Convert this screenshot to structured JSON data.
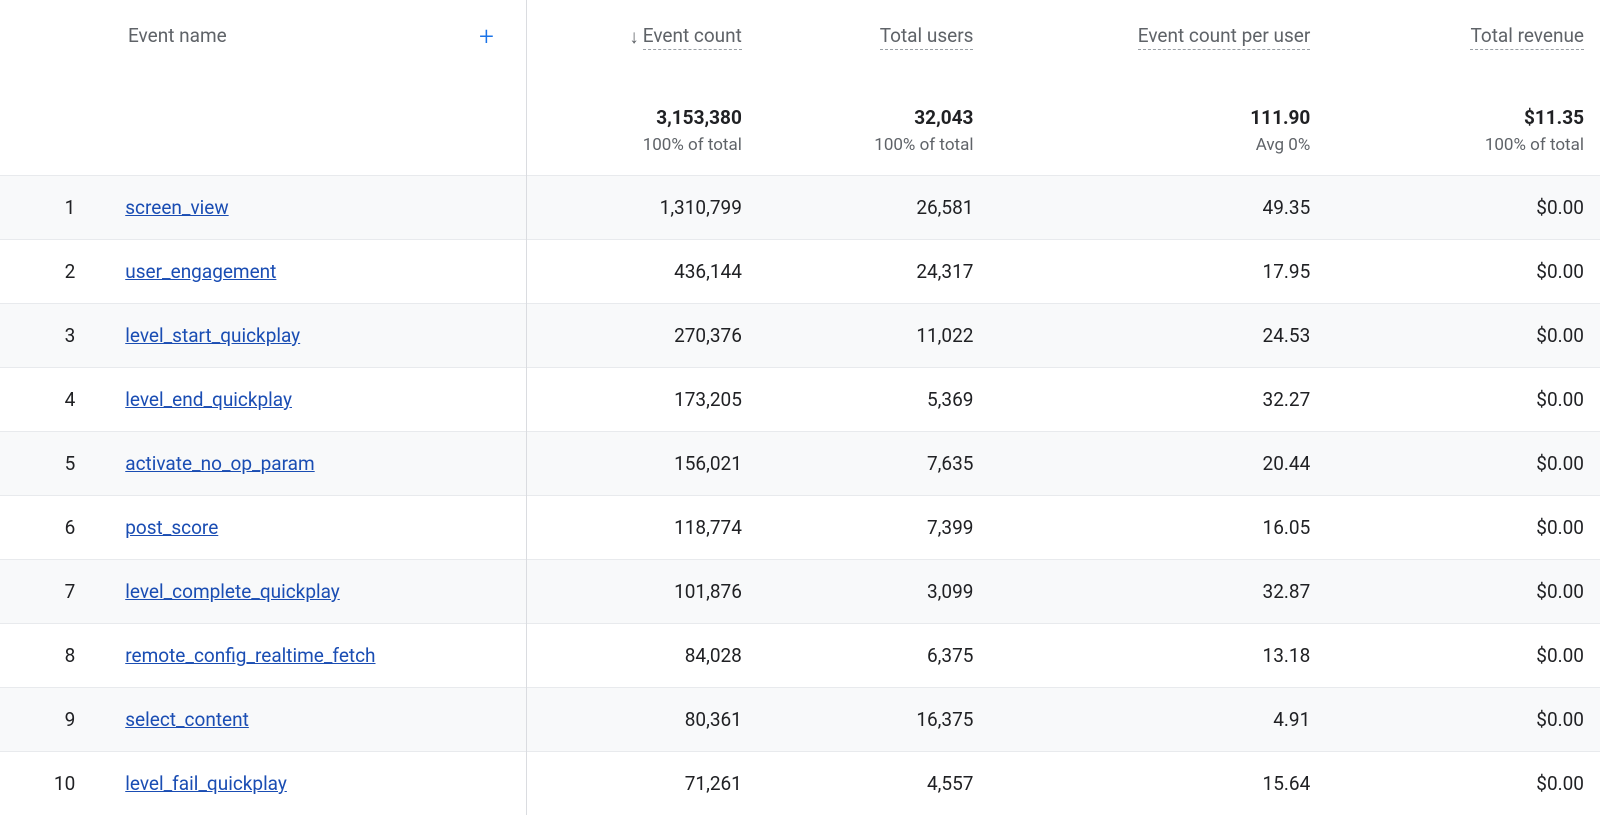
{
  "colors": {
    "text": "#202124",
    "muted": "#5f6368",
    "link": "#1a4db3",
    "accent": "#1a73e8",
    "border": "#dadce0",
    "rowBorder": "#e8eaed",
    "stripe": "#f8f9fa",
    "dashed": "#9aa0a6",
    "background": "#ffffff"
  },
  "header": {
    "name_label": "Event name",
    "plus_glyph": "+",
    "sort_arrow": "↓",
    "columns": [
      {
        "label": "Event count",
        "sorted": true
      },
      {
        "label": "Total users",
        "sorted": false
      },
      {
        "label": "Event count per user",
        "sorted": false
      },
      {
        "label": "Total revenue",
        "sorted": false
      }
    ]
  },
  "totals": {
    "event_count": {
      "value": "3,153,380",
      "sub": "100% of total"
    },
    "total_users": {
      "value": "32,043",
      "sub": "100% of total"
    },
    "per_user": {
      "value": "111.90",
      "sub": "Avg 0%"
    },
    "revenue": {
      "value": "$11.35",
      "sub": "100% of total"
    }
  },
  "rows": [
    {
      "idx": "1",
      "name": "screen_view",
      "event_count": "1,310,799",
      "total_users": "26,581",
      "per_user": "49.35",
      "revenue": "$0.00"
    },
    {
      "idx": "2",
      "name": "user_engagement",
      "event_count": "436,144",
      "total_users": "24,317",
      "per_user": "17.95",
      "revenue": "$0.00"
    },
    {
      "idx": "3",
      "name": "level_start_quickplay",
      "event_count": "270,376",
      "total_users": "11,022",
      "per_user": "24.53",
      "revenue": "$0.00"
    },
    {
      "idx": "4",
      "name": "level_end_quickplay",
      "event_count": "173,205",
      "total_users": "5,369",
      "per_user": "32.27",
      "revenue": "$0.00"
    },
    {
      "idx": "5",
      "name": "activate_no_op_param",
      "event_count": "156,021",
      "total_users": "7,635",
      "per_user": "20.44",
      "revenue": "$0.00"
    },
    {
      "idx": "6",
      "name": "post_score",
      "event_count": "118,774",
      "total_users": "7,399",
      "per_user": "16.05",
      "revenue": "$0.00"
    },
    {
      "idx": "7",
      "name": "level_complete_quickplay",
      "event_count": "101,876",
      "total_users": "3,099",
      "per_user": "32.87",
      "revenue": "$0.00"
    },
    {
      "idx": "8",
      "name": "remote_config_realtime_fetch",
      "event_count": "84,028",
      "total_users": "6,375",
      "per_user": "13.18",
      "revenue": "$0.00"
    },
    {
      "idx": "9",
      "name": "select_content",
      "event_count": "80,361",
      "total_users": "16,375",
      "per_user": "4.91",
      "revenue": "$0.00"
    },
    {
      "idx": "10",
      "name": "level_fail_quickplay",
      "event_count": "71,261",
      "total_users": "4,557",
      "per_user": "15.64",
      "revenue": "$0.00"
    }
  ]
}
